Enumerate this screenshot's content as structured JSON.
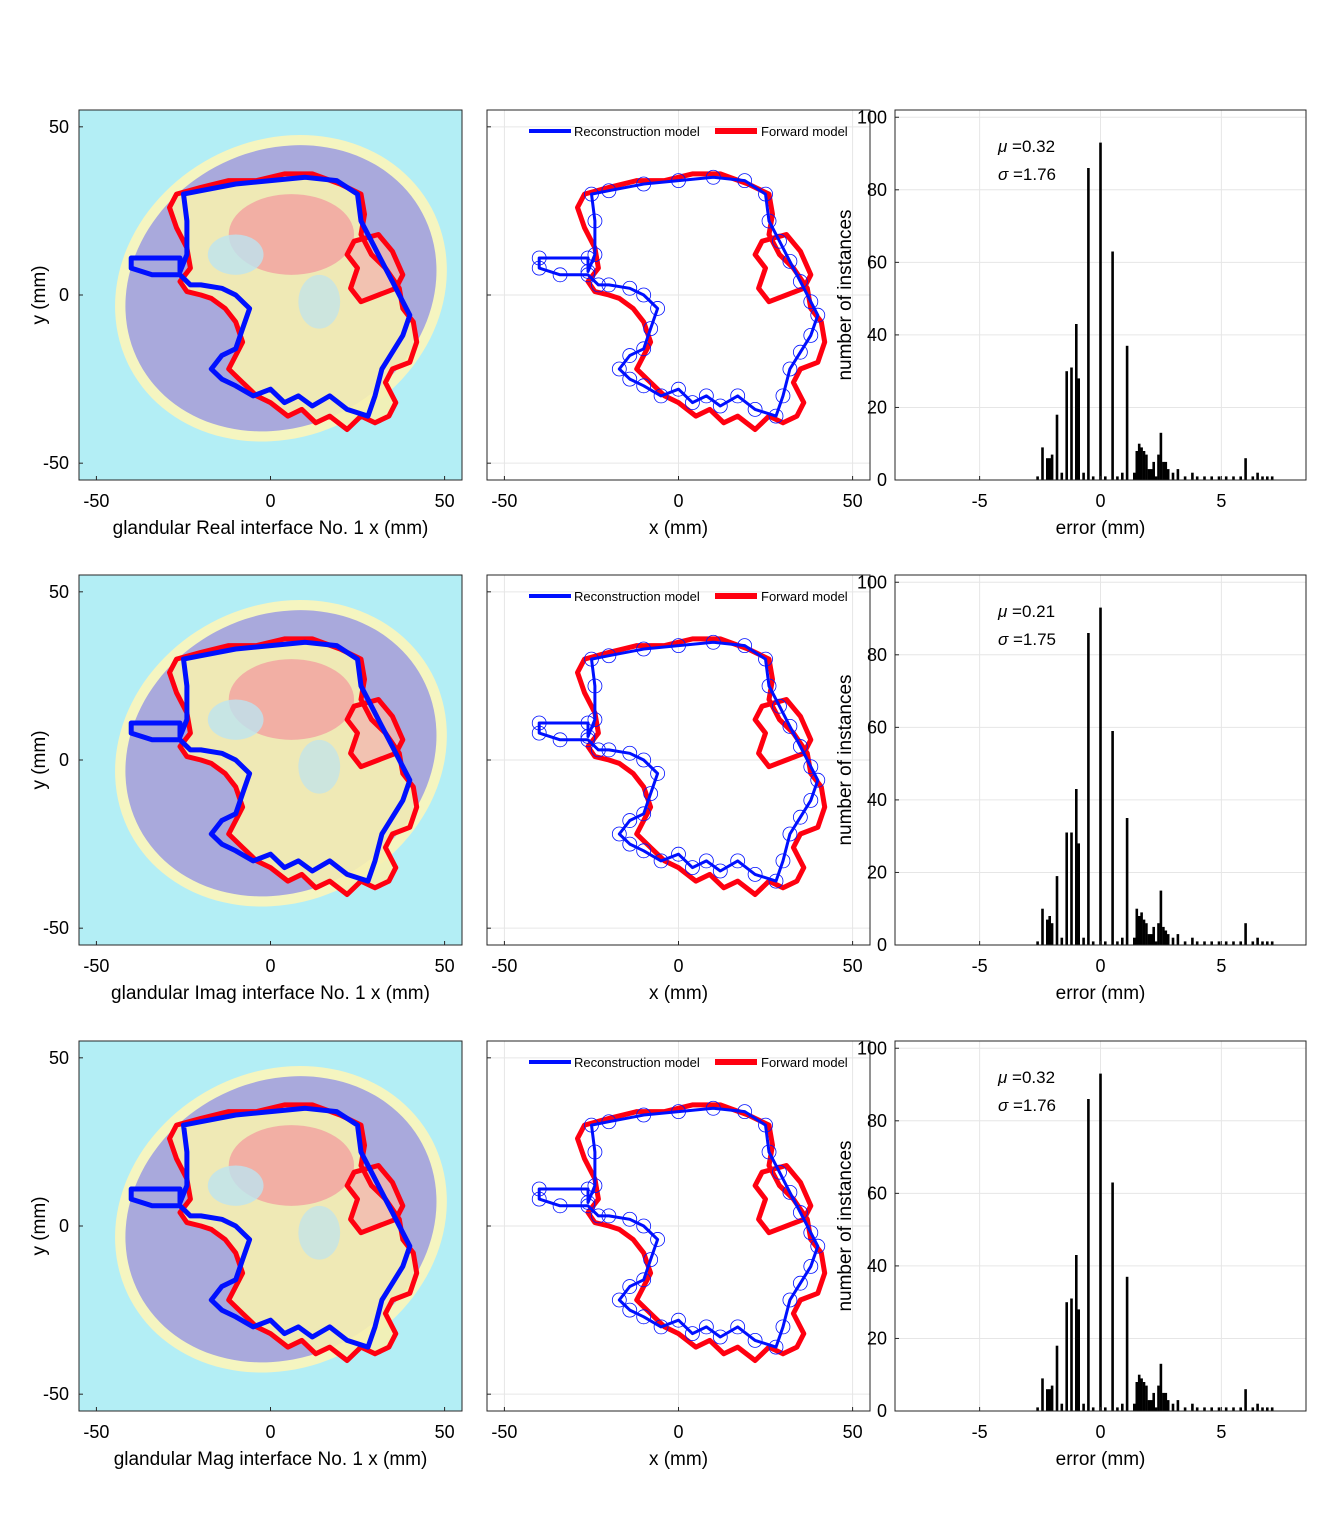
{
  "colors": {
    "background": "#b3eef5",
    "breast_outer": "#f5f5c0",
    "breast_inner": "#a9a9dc",
    "reconstruction": "#0010ff",
    "forward": "#ff0010",
    "histogram_bar": "#000000",
    "grid": "#e6e6e6"
  },
  "legend": {
    "reconstruction_label": "Reconstruction model",
    "forward_label": "Forward model"
  },
  "common": {
    "y_label": "y (mm)",
    "x_label_mid": "x (mm)",
    "hist_xlabel": "error (mm)",
    "hist_ylabel": "number of instances"
  },
  "chart_data": [
    {
      "type": "image",
      "xlabel": "glandular Real interface No. 1 x (mm)",
      "ylabel": "y (mm)",
      "xlim": [
        -55,
        55
      ],
      "ylim": [
        -55,
        55
      ],
      "xticks": [
        -50,
        0,
        50
      ],
      "yticks": [
        -50,
        0,
        50
      ]
    },
    {
      "type": "line",
      "xlabel": "x (mm)",
      "xlim": [
        -55,
        55
      ],
      "ylim": [
        -55,
        55
      ],
      "xticks": [
        -50,
        0,
        50
      ],
      "legend": [
        "Reconstruction model",
        "Forward model"
      ],
      "legend_position": "top"
    },
    {
      "type": "bar",
      "xlabel": "error (mm)",
      "ylabel": "number of instances",
      "xlim": [
        -8.5,
        8.5
      ],
      "ylim": [
        0,
        102
      ],
      "xticks": [
        -5,
        0,
        5
      ],
      "yticks": [
        0,
        20,
        40,
        60,
        80,
        100
      ],
      "mu": "0.32",
      "sigma": "1.76",
      "x": [
        -2.6,
        -2.4,
        -2.2,
        -2.1,
        -2.0,
        -1.8,
        -1.6,
        -1.4,
        -1.2,
        -1.0,
        -0.9,
        -0.7,
        -0.5,
        -0.3,
        0.0,
        0.2,
        0.5,
        0.7,
        0.9,
        1.1,
        1.4,
        1.5,
        1.6,
        1.7,
        1.8,
        1.9,
        2.0,
        2.1,
        2.2,
        2.3,
        2.4,
        2.5,
        2.6,
        2.7,
        2.8,
        3.0,
        3.2,
        3.5,
        3.8,
        4.0,
        4.3,
        4.6,
        4.9,
        5.2,
        5.5,
        5.8,
        6.0,
        6.3,
        6.5,
        6.7,
        6.9,
        7.1
      ],
      "values": [
        1,
        9,
        6,
        6,
        7,
        18,
        2,
        30,
        31,
        43,
        28,
        2,
        86,
        1,
        93,
        1,
        63,
        1,
        2,
        37,
        2,
        8,
        10,
        9,
        8,
        7,
        3,
        3,
        5,
        1,
        7,
        13,
        5,
        5,
        3,
        2,
        3,
        1,
        2,
        1,
        1,
        1,
        1,
        1,
        1,
        1,
        6,
        1,
        2,
        1,
        1,
        1
      ]
    },
    {
      "type": "image",
      "xlabel": "glandular Imag interface No. 1 x (mm)",
      "ylabel": "y (mm)",
      "xlim": [
        -55,
        55
      ],
      "ylim": [
        -55,
        55
      ],
      "xticks": [
        -50,
        0,
        50
      ],
      "yticks": [
        -50,
        0,
        50
      ]
    },
    {
      "type": "line",
      "xlabel": "x (mm)",
      "xlim": [
        -55,
        55
      ],
      "ylim": [
        -55,
        55
      ],
      "xticks": [
        -50,
        0,
        50
      ],
      "legend": [
        "Reconstruction model",
        "Forward model"
      ],
      "legend_position": "top"
    },
    {
      "type": "bar",
      "xlabel": "error (mm)",
      "ylabel": "number of instances",
      "xlim": [
        -8.5,
        8.5
      ],
      "ylim": [
        0,
        102
      ],
      "xticks": [
        -5,
        0,
        5
      ],
      "yticks": [
        0,
        20,
        40,
        60,
        80,
        100
      ],
      "mu": "0.21",
      "sigma": "1.75",
      "x": [
        -2.6,
        -2.4,
        -2.2,
        -2.1,
        -2.0,
        -1.8,
        -1.6,
        -1.4,
        -1.2,
        -1.0,
        -0.9,
        -0.7,
        -0.5,
        -0.3,
        0.0,
        0.2,
        0.5,
        0.7,
        0.9,
        1.1,
        1.4,
        1.5,
        1.6,
        1.7,
        1.8,
        1.9,
        2.0,
        2.1,
        2.2,
        2.3,
        2.4,
        2.5,
        2.6,
        2.7,
        2.8,
        3.0,
        3.2,
        3.5,
        3.8,
        4.0,
        4.3,
        4.6,
        4.9,
        5.2,
        5.5,
        5.8,
        6.0,
        6.3,
        6.5,
        6.7,
        6.9,
        7.1
      ],
      "values": [
        1,
        10,
        7,
        8,
        6,
        19,
        2,
        31,
        31,
        43,
        28,
        2,
        86,
        1,
        93,
        1,
        59,
        1,
        2,
        35,
        2,
        10,
        8,
        9,
        7,
        6,
        3,
        3,
        5,
        1,
        6,
        15,
        5,
        4,
        3,
        2,
        3,
        1,
        2,
        1,
        1,
        1,
        1,
        1,
        1,
        1,
        6,
        1,
        2,
        1,
        1,
        1
      ]
    },
    {
      "type": "image",
      "xlabel": "glandular Mag interface No. 1 x (mm)",
      "ylabel": "y (mm)",
      "xlim": [
        -55,
        55
      ],
      "ylim": [
        -55,
        55
      ],
      "xticks": [
        -50,
        0,
        50
      ],
      "yticks": [
        -50,
        0,
        50
      ]
    },
    {
      "type": "line",
      "xlabel": "x (mm)",
      "xlim": [
        -55,
        55
      ],
      "ylim": [
        -55,
        55
      ],
      "xticks": [
        -50,
        0,
        50
      ],
      "legend": [
        "Reconstruction model",
        "Forward model"
      ],
      "legend_position": "top"
    },
    {
      "type": "bar",
      "xlabel": "error (mm)",
      "ylabel": "number of instances",
      "xlim": [
        -8.5,
        8.5
      ],
      "ylim": [
        0,
        102
      ],
      "xticks": [
        -5,
        0,
        5
      ],
      "yticks": [
        0,
        20,
        40,
        60,
        80,
        100
      ],
      "mu": "0.32",
      "sigma": "1.76",
      "x": [
        -2.6,
        -2.4,
        -2.2,
        -2.1,
        -2.0,
        -1.8,
        -1.6,
        -1.4,
        -1.2,
        -1.0,
        -0.9,
        -0.7,
        -0.5,
        -0.3,
        0.0,
        0.2,
        0.5,
        0.7,
        0.9,
        1.1,
        1.4,
        1.5,
        1.6,
        1.7,
        1.8,
        1.9,
        2.0,
        2.1,
        2.2,
        2.3,
        2.4,
        2.5,
        2.6,
        2.7,
        2.8,
        3.0,
        3.2,
        3.5,
        3.8,
        4.0,
        4.3,
        4.6,
        4.9,
        5.2,
        5.5,
        5.8,
        6.0,
        6.3,
        6.5,
        6.7,
        6.9,
        7.1
      ],
      "values": [
        1,
        9,
        6,
        6,
        7,
        18,
        2,
        30,
        31,
        43,
        28,
        2,
        86,
        1,
        93,
        1,
        63,
        1,
        2,
        37,
        2,
        8,
        10,
        9,
        8,
        7,
        3,
        3,
        5,
        1,
        7,
        13,
        5,
        5,
        3,
        2,
        3,
        1,
        2,
        1,
        1,
        1,
        1,
        1,
        1,
        1,
        6,
        1,
        2,
        1,
        1,
        1
      ]
    }
  ],
  "recon_contour": [
    [
      -40,
      11
    ],
    [
      -26,
      11
    ],
    [
      -26,
      7
    ],
    [
      -24,
      12
    ],
    [
      -24,
      22
    ],
    [
      -25,
      30
    ],
    [
      -20,
      31
    ],
    [
      -10,
      33
    ],
    [
      0,
      34
    ],
    [
      10,
      35
    ],
    [
      19,
      34
    ],
    [
      25,
      30
    ],
    [
      26,
      22
    ],
    [
      29,
      16
    ],
    [
      32,
      10
    ],
    [
      35,
      4
    ],
    [
      38,
      -2
    ],
    [
      40,
      -6
    ],
    [
      38,
      -12
    ],
    [
      35,
      -17
    ],
    [
      32,
      -22
    ],
    [
      30,
      -30
    ],
    [
      28,
      -36
    ],
    [
      22,
      -34
    ],
    [
      17,
      -30
    ],
    [
      12,
      -33
    ],
    [
      8,
      -30
    ],
    [
      4,
      -32
    ],
    [
      0,
      -28
    ],
    [
      -5,
      -30
    ],
    [
      -10,
      -27
    ],
    [
      -14,
      -25
    ],
    [
      -17,
      -22
    ],
    [
      -14,
      -18
    ],
    [
      -10,
      -16
    ],
    [
      -8,
      -10
    ],
    [
      -6,
      -4
    ],
    [
      -10,
      0
    ],
    [
      -14,
      2
    ],
    [
      -20,
      3
    ],
    [
      -23,
      3
    ],
    [
      -26,
      6
    ],
    [
      -34,
      6
    ],
    [
      -40,
      8
    ]
  ],
  "forward_main": [
    [
      -27,
      30
    ],
    [
      -20,
      32
    ],
    [
      -12,
      34
    ],
    [
      -4,
      34
    ],
    [
      4,
      36
    ],
    [
      12,
      36
    ],
    [
      20,
      33
    ],
    [
      26,
      30
    ],
    [
      27,
      24
    ],
    [
      26,
      18
    ],
    [
      29,
      12
    ],
    [
      33,
      8
    ],
    [
      37,
      2
    ],
    [
      38,
      -4
    ],
    [
      41,
      -8
    ],
    [
      42,
      -14
    ],
    [
      40,
      -20
    ],
    [
      35,
      -22
    ],
    [
      33,
      -26
    ],
    [
      36,
      -32
    ],
    [
      34,
      -36
    ],
    [
      30,
      -38
    ],
    [
      26,
      -36
    ],
    [
      22,
      -40
    ],
    [
      17,
      -36
    ],
    [
      13,
      -38
    ],
    [
      9,
      -34
    ],
    [
      5,
      -36
    ],
    [
      0,
      -32
    ],
    [
      -4,
      -30
    ],
    [
      -8,
      -26
    ],
    [
      -12,
      -22
    ],
    [
      -10,
      -18
    ],
    [
      -8,
      -14
    ],
    [
      -10,
      -8
    ],
    [
      -13,
      -4
    ],
    [
      -17,
      -1
    ],
    [
      -20,
      0
    ],
    [
      -24,
      1
    ],
    [
      -26,
      4
    ],
    [
      -23,
      8
    ],
    [
      -24,
      14
    ],
    [
      -27,
      20
    ],
    [
      -29,
      26
    ]
  ],
  "forward_lobe": [
    [
      24,
      16
    ],
    [
      31,
      18
    ],
    [
      35,
      13
    ],
    [
      38,
      6
    ],
    [
      36,
      2
    ],
    [
      31,
      0
    ],
    [
      26,
      -2
    ],
    [
      23,
      2
    ],
    [
      25,
      8
    ],
    [
      22,
      12
    ]
  ]
}
